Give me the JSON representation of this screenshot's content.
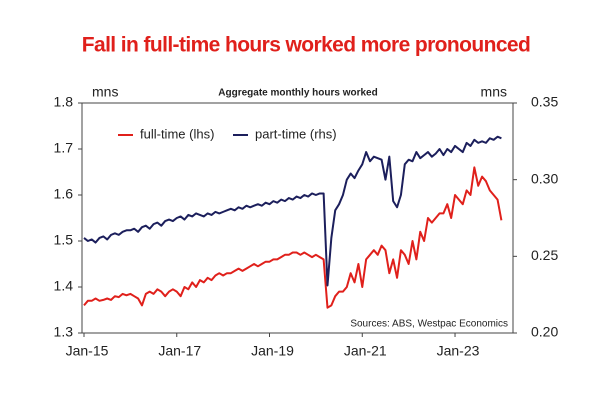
{
  "chart_data": {
    "type": "line",
    "title": "Fall in full-time hours worked more pronounced",
    "subtitle": "Aggregate monthly hours worked",
    "y_unit": "mns",
    "y2_unit": "mns",
    "source": "Sources: ABS, Westpac Economics",
    "categories": [
      "Jan-15",
      null,
      null,
      null,
      null,
      null,
      null,
      null,
      null,
      null,
      null,
      null,
      null,
      null,
      null,
      null,
      null,
      null,
      null,
      null,
      null,
      null,
      null,
      null,
      "Jan-17",
      null,
      null,
      null,
      null,
      null,
      null,
      null,
      null,
      null,
      null,
      null,
      null,
      null,
      null,
      null,
      null,
      null,
      null,
      null,
      null,
      null,
      null,
      null,
      "Jan-19",
      null,
      null,
      null,
      null,
      null,
      null,
      null,
      null,
      null,
      null,
      null,
      null,
      null,
      null,
      null,
      null,
      null,
      null,
      null,
      null,
      null,
      null,
      null,
      "Jan-21",
      null,
      null,
      null,
      null,
      null,
      null,
      null,
      null,
      null,
      null,
      null,
      null,
      null,
      null,
      null,
      null,
      null,
      null,
      null,
      null,
      null,
      null,
      null,
      "Jan-23",
      null,
      null,
      null,
      null,
      null,
      null,
      null,
      null,
      null,
      null,
      null,
      null
    ],
    "series": [
      {
        "name": "full-time (lhs)",
        "color": "#e0201b",
        "axis": "y",
        "values": [
          1.36,
          1.37,
          1.37,
          1.375,
          1.37,
          1.372,
          1.375,
          1.372,
          1.38,
          1.378,
          1.385,
          1.382,
          1.385,
          1.38,
          1.375,
          1.36,
          1.385,
          1.39,
          1.385,
          1.395,
          1.39,
          1.38,
          1.39,
          1.395,
          1.39,
          1.38,
          1.4,
          1.395,
          1.41,
          1.4,
          1.415,
          1.41,
          1.42,
          1.415,
          1.425,
          1.43,
          1.425,
          1.43,
          1.43,
          1.435,
          1.44,
          1.435,
          1.44,
          1.445,
          1.45,
          1.445,
          1.45,
          1.455,
          1.455,
          1.46,
          1.46,
          1.465,
          1.47,
          1.47,
          1.475,
          1.475,
          1.47,
          1.475,
          1.47,
          1.465,
          1.47,
          1.465,
          1.46,
          1.355,
          1.36,
          1.38,
          1.39,
          1.39,
          1.4,
          1.43,
          1.41,
          1.45,
          1.4,
          1.46,
          1.47,
          1.48,
          1.47,
          1.49,
          1.48,
          1.43,
          1.46,
          1.42,
          1.48,
          1.47,
          1.45,
          1.5,
          1.46,
          1.52,
          1.5,
          1.55,
          1.54,
          1.55,
          1.56,
          1.56,
          1.58,
          1.55,
          1.6,
          1.59,
          1.58,
          1.61,
          1.6,
          1.66,
          1.62,
          1.64,
          1.63,
          1.61,
          1.6,
          1.59,
          1.545
        ]
      },
      {
        "name": "part-time (rhs)",
        "color": "#1c1f5c",
        "axis": "y2",
        "values": [
          0.262,
          0.26,
          0.261,
          0.259,
          0.262,
          0.263,
          0.261,
          0.264,
          0.265,
          0.264,
          0.266,
          0.267,
          0.267,
          0.268,
          0.266,
          0.269,
          0.27,
          0.268,
          0.271,
          0.272,
          0.27,
          0.273,
          0.274,
          0.273,
          0.275,
          0.276,
          0.274,
          0.277,
          0.276,
          0.278,
          0.277,
          0.276,
          0.278,
          0.277,
          0.279,
          0.278,
          0.279,
          0.28,
          0.281,
          0.28,
          0.282,
          0.281,
          0.283,
          0.282,
          0.283,
          0.284,
          0.283,
          0.285,
          0.284,
          0.286,
          0.285,
          0.287,
          0.286,
          0.288,
          0.287,
          0.289,
          0.288,
          0.29,
          0.289,
          0.291,
          0.29,
          0.291,
          0.291,
          0.231,
          0.262,
          0.28,
          0.284,
          0.29,
          0.3,
          0.304,
          0.301,
          0.306,
          0.31,
          0.318,
          0.312,
          0.315,
          0.314,
          0.313,
          0.3,
          0.315,
          0.286,
          0.282,
          0.29,
          0.31,
          0.313,
          0.312,
          0.318,
          0.314,
          0.316,
          0.318,
          0.315,
          0.317,
          0.32,
          0.316,
          0.32,
          0.318,
          0.322,
          0.32,
          0.318,
          0.324,
          0.322,
          0.326,
          0.324,
          0.325,
          0.324,
          0.327,
          0.326,
          0.328,
          0.327
        ]
      }
    ],
    "ylim": [
      1.3,
      1.8
    ],
    "yticks": [
      1.3,
      1.4,
      1.5,
      1.6,
      1.7,
      1.8
    ],
    "y2lim": [
      0.2,
      0.35
    ],
    "y2ticks": [
      {
        "value": 0.2,
        "label": "0.20"
      },
      0.25,
      {
        "value": 0.3,
        "label": "0.30"
      },
      0.35
    ],
    "grid": false,
    "legend": "top-left"
  }
}
